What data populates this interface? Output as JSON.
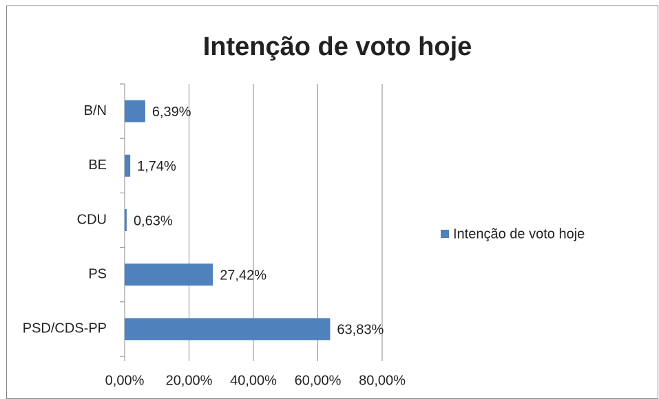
{
  "chart_data": {
    "type": "bar",
    "orientation": "horizontal",
    "title": "Intenção de voto hoje",
    "categories": [
      "B/N",
      "BE",
      "CDU",
      "PS",
      "PSD/CDS-PP"
    ],
    "series": [
      {
        "name": "Intenção de voto hoje",
        "color": "#4f81bd",
        "values": [
          6.39,
          1.74,
          0.63,
          27.42,
          63.83
        ],
        "value_labels": [
          "6,39%",
          "1,74%",
          "0,63%",
          "27,42%",
          "63,83%"
        ]
      }
    ],
    "xlim": [
      0,
      80
    ],
    "xticks": [
      {
        "value": 0,
        "label": "0,00%"
      },
      {
        "value": 20,
        "label": "20,00%"
      },
      {
        "value": 40,
        "label": "40,00%"
      },
      {
        "value": 60,
        "label": "60,00%"
      },
      {
        "value": 80,
        "label": "80,00%"
      }
    ],
    "grid": true,
    "legend": "right"
  }
}
